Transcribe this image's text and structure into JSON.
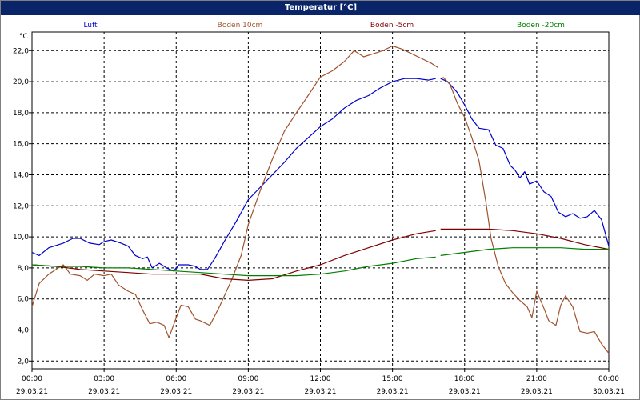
{
  "window": {
    "title": "Temperatur [°C]"
  },
  "chart_data": {
    "type": "line",
    "title": "Temperatur [°C]",
    "ylabel": "°C",
    "xlabel": "",
    "ylim": [
      1.5,
      23.2
    ],
    "xlim": [
      0,
      24
    ],
    "grid": true,
    "legend_placement": "top",
    "yticks": [
      "2,0",
      "4,0",
      "6,0",
      "8,0",
      "10,0",
      "12,0",
      "14,0",
      "16,0",
      "18,0",
      "20,0",
      "22,0"
    ],
    "xticks": [
      {
        "time": "00:00",
        "date": "29.03.21"
      },
      {
        "time": "03:00",
        "date": "29.03.21"
      },
      {
        "time": "06:00",
        "date": "29.03.21"
      },
      {
        "time": "09:00",
        "date": "29.03.21"
      },
      {
        "time": "12:00",
        "date": "29.03.21"
      },
      {
        "time": "15:00",
        "date": "29.03.21"
      },
      {
        "time": "18:00",
        "date": "29.03.21"
      },
      {
        "time": "21:00",
        "date": "29.03.21"
      },
      {
        "time": "00:00",
        "date": "30.03.21"
      }
    ],
    "x_unit": "hours since 29.03.21 00:00",
    "series": [
      {
        "name": "Luft",
        "color": "#0000cc",
        "points": [
          [
            0,
            9.0
          ],
          [
            0.3,
            8.8
          ],
          [
            0.7,
            9.3
          ],
          [
            1.3,
            9.6
          ],
          [
            1.7,
            9.9
          ],
          [
            2.0,
            9.9
          ],
          [
            2.4,
            9.6
          ],
          [
            2.8,
            9.5
          ],
          [
            3.0,
            9.7
          ],
          [
            3.3,
            9.8
          ],
          [
            3.7,
            9.6
          ],
          [
            4.0,
            9.4
          ],
          [
            4.3,
            8.8
          ],
          [
            4.6,
            8.6
          ],
          [
            4.8,
            8.7
          ],
          [
            5.0,
            8.0
          ],
          [
            5.3,
            8.3
          ],
          [
            5.6,
            8.0
          ],
          [
            5.9,
            7.8
          ],
          [
            6.1,
            8.2
          ],
          [
            6.5,
            8.2
          ],
          [
            6.8,
            8.1
          ],
          [
            7.0,
            7.9
          ],
          [
            7.3,
            7.9
          ],
          [
            7.6,
            8.6
          ],
          [
            8.0,
            9.7
          ],
          [
            8.5,
            11.0
          ],
          [
            9.0,
            12.4
          ],
          [
            9.5,
            13.2
          ],
          [
            10.0,
            14.0
          ],
          [
            10.5,
            14.8
          ],
          [
            11.0,
            15.7
          ],
          [
            11.5,
            16.4
          ],
          [
            12.0,
            17.1
          ],
          [
            12.5,
            17.6
          ],
          [
            13.0,
            18.3
          ],
          [
            13.5,
            18.8
          ],
          [
            14.0,
            19.1
          ],
          [
            14.5,
            19.6
          ],
          [
            15.0,
            20.0
          ],
          [
            15.5,
            20.2
          ],
          [
            16.0,
            20.2
          ],
          [
            16.5,
            20.1
          ],
          [
            16.8,
            20.2
          ]
        ],
        "points_segment2": [
          [
            17.0,
            20.2
          ],
          [
            17.3,
            20.0
          ],
          [
            17.7,
            19.3
          ],
          [
            18.0,
            18.5
          ],
          [
            18.3,
            17.6
          ],
          [
            18.6,
            17.0
          ],
          [
            19.0,
            16.9
          ],
          [
            19.3,
            15.9
          ],
          [
            19.6,
            15.7
          ],
          [
            19.9,
            14.6
          ],
          [
            20.1,
            14.3
          ],
          [
            20.3,
            13.8
          ],
          [
            20.5,
            14.2
          ],
          [
            20.7,
            13.4
          ],
          [
            21.0,
            13.6
          ],
          [
            21.3,
            12.9
          ],
          [
            21.6,
            12.6
          ],
          [
            21.9,
            11.6
          ],
          [
            22.2,
            11.3
          ],
          [
            22.5,
            11.5
          ],
          [
            22.8,
            11.2
          ],
          [
            23.1,
            11.3
          ],
          [
            23.4,
            11.7
          ],
          [
            23.7,
            11.1
          ],
          [
            24.0,
            9.4
          ]
        ]
      },
      {
        "name": "Boden 10cm",
        "color": "#a0522d",
        "points": [
          [
            0,
            5.5
          ],
          [
            0.3,
            7.0
          ],
          [
            0.7,
            7.6
          ],
          [
            1.0,
            7.9
          ],
          [
            1.3,
            8.2
          ],
          [
            1.6,
            7.6
          ],
          [
            2.0,
            7.5
          ],
          [
            2.3,
            7.2
          ],
          [
            2.6,
            7.6
          ],
          [
            3.0,
            7.5
          ],
          [
            3.3,
            7.6
          ],
          [
            3.6,
            6.9
          ],
          [
            4.0,
            6.5
          ],
          [
            4.3,
            6.3
          ],
          [
            4.6,
            5.3
          ],
          [
            4.9,
            4.4
          ],
          [
            5.2,
            4.5
          ],
          [
            5.5,
            4.3
          ],
          [
            5.7,
            3.5
          ],
          [
            6.0,
            4.8
          ],
          [
            6.2,
            5.6
          ],
          [
            6.5,
            5.5
          ],
          [
            6.8,
            4.7
          ],
          [
            7.0,
            4.6
          ],
          [
            7.4,
            4.3
          ],
          [
            7.8,
            5.5
          ],
          [
            8.3,
            7.2
          ],
          [
            8.7,
            8.8
          ],
          [
            9.0,
            10.8
          ],
          [
            9.5,
            13.0
          ],
          [
            10.0,
            15.0
          ],
          [
            10.5,
            16.8
          ],
          [
            11.0,
            18.0
          ],
          [
            11.4,
            18.9
          ],
          [
            11.7,
            19.6
          ],
          [
            12.0,
            20.3
          ],
          [
            12.5,
            20.7
          ],
          [
            13.0,
            21.3
          ],
          [
            13.4,
            22.0
          ],
          [
            13.8,
            21.6
          ],
          [
            14.2,
            21.8
          ],
          [
            14.6,
            22.0
          ],
          [
            15.0,
            22.3
          ],
          [
            15.4,
            22.1
          ],
          [
            15.8,
            21.8
          ],
          [
            16.2,
            21.5
          ],
          [
            16.6,
            21.2
          ],
          [
            16.9,
            20.9
          ]
        ],
        "points_segment2": [
          [
            17.1,
            20.3
          ],
          [
            17.4,
            19.8
          ],
          [
            17.7,
            18.6
          ],
          [
            18.0,
            17.7
          ],
          [
            18.3,
            16.4
          ],
          [
            18.6,
            14.9
          ],
          [
            18.9,
            12.1
          ],
          [
            19.1,
            9.9
          ],
          [
            19.4,
            8.1
          ],
          [
            19.7,
            7.0
          ],
          [
            20.0,
            6.4
          ],
          [
            20.3,
            5.9
          ],
          [
            20.6,
            5.5
          ],
          [
            20.8,
            4.8
          ],
          [
            21.0,
            6.5
          ],
          [
            21.3,
            5.4
          ],
          [
            21.5,
            4.6
          ],
          [
            21.8,
            4.3
          ],
          [
            22.0,
            5.6
          ],
          [
            22.2,
            6.2
          ],
          [
            22.5,
            5.5
          ],
          [
            22.8,
            3.9
          ],
          [
            23.1,
            3.8
          ],
          [
            23.4,
            3.9
          ],
          [
            23.7,
            3.1
          ],
          [
            24.0,
            2.5
          ]
        ]
      },
      {
        "name": "Boden -5cm",
        "color": "#800000",
        "points": [
          [
            0,
            8.2
          ],
          [
            1,
            8.1
          ],
          [
            2,
            7.9
          ],
          [
            3,
            7.8
          ],
          [
            4,
            7.7
          ],
          [
            5,
            7.6
          ],
          [
            6,
            7.6
          ],
          [
            7,
            7.6
          ],
          [
            8,
            7.3
          ],
          [
            9,
            7.2
          ],
          [
            10,
            7.3
          ],
          [
            11,
            7.8
          ],
          [
            12,
            8.2
          ],
          [
            13,
            8.8
          ],
          [
            14,
            9.3
          ],
          [
            15,
            9.8
          ],
          [
            16,
            10.2
          ],
          [
            16.8,
            10.4
          ]
        ],
        "points_segment2": [
          [
            17.0,
            10.5
          ],
          [
            18,
            10.5
          ],
          [
            19,
            10.5
          ],
          [
            20,
            10.4
          ],
          [
            21,
            10.2
          ],
          [
            22,
            9.9
          ],
          [
            23,
            9.5
          ],
          [
            24,
            9.2
          ]
        ]
      },
      {
        "name": "Boden -20cm",
        "color": "#008000",
        "points": [
          [
            0,
            8.2
          ],
          [
            1,
            8.1
          ],
          [
            2,
            8.1
          ],
          [
            3,
            8.0
          ],
          [
            4,
            8.0
          ],
          [
            5,
            7.9
          ],
          [
            6,
            7.8
          ],
          [
            7,
            7.7
          ],
          [
            8,
            7.6
          ],
          [
            9,
            7.5
          ],
          [
            10,
            7.5
          ],
          [
            11,
            7.5
          ],
          [
            12,
            7.6
          ],
          [
            13,
            7.8
          ],
          [
            14,
            8.1
          ],
          [
            15,
            8.3
          ],
          [
            16,
            8.6
          ],
          [
            16.8,
            8.7
          ]
        ],
        "points_segment2": [
          [
            17.0,
            8.8
          ],
          [
            18,
            9.0
          ],
          [
            19,
            9.2
          ],
          [
            20,
            9.3
          ],
          [
            21,
            9.3
          ],
          [
            22,
            9.3
          ],
          [
            23,
            9.2
          ],
          [
            24,
            9.2
          ]
        ]
      }
    ]
  }
}
